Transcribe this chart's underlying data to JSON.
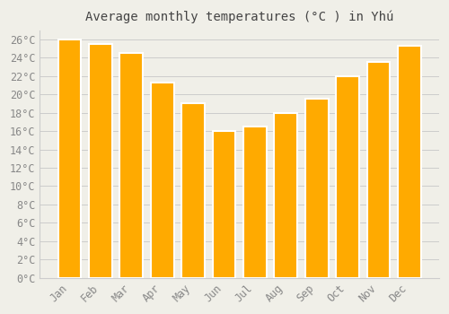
{
  "title": "Average monthly temperatures (°C ) in Yhú",
  "months": [
    "Jan",
    "Feb",
    "Mar",
    "Apr",
    "May",
    "Jun",
    "Jul",
    "Aug",
    "Sep",
    "Oct",
    "Nov",
    "Dec"
  ],
  "values": [
    26.0,
    25.5,
    24.5,
    21.3,
    19.0,
    16.0,
    16.5,
    18.0,
    19.5,
    22.0,
    23.5,
    25.3
  ],
  "bar_color": "#FFAA00",
  "bar_edge_color": "#FFFFFF",
  "background_color": "#F0EFE8",
  "grid_color": "#CCCCCC",
  "tick_label_color": "#888888",
  "title_color": "#444444",
  "ylim": [
    0,
    27
  ],
  "yticks": [
    0,
    2,
    4,
    6,
    8,
    10,
    12,
    14,
    16,
    18,
    20,
    22,
    24,
    26
  ],
  "title_fontsize": 10,
  "tick_fontsize": 8.5
}
